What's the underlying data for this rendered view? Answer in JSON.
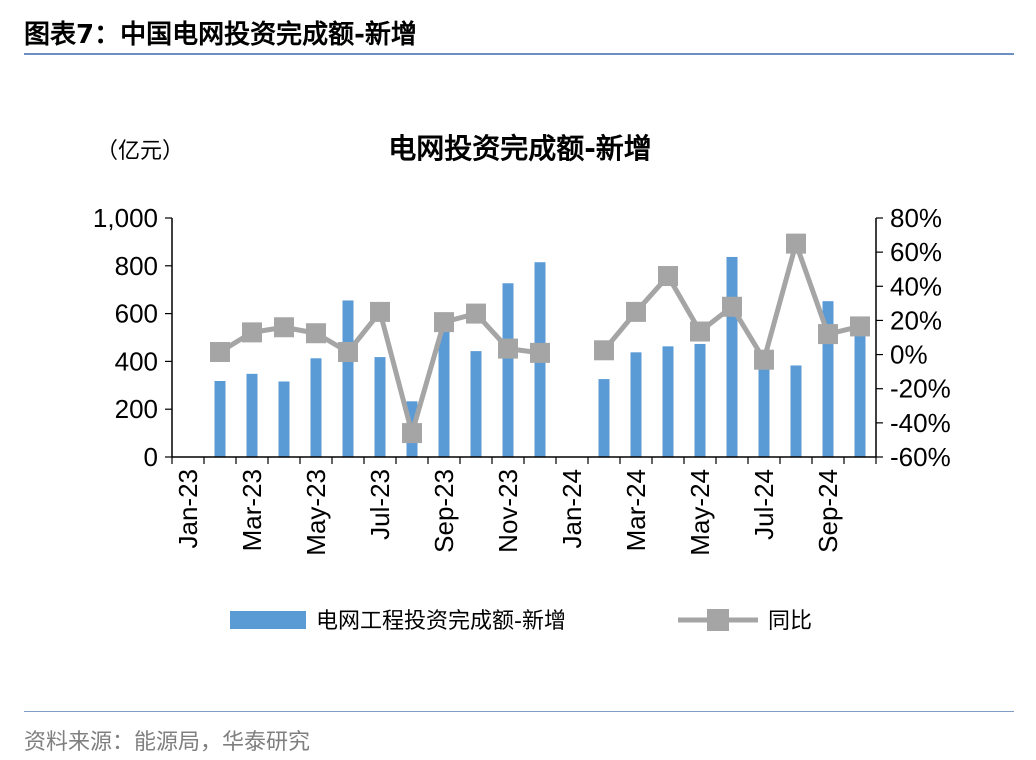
{
  "figure": {
    "label": "图表7：",
    "title": "中国电网投资完成额-新增"
  },
  "source": "资料来源：能源局，华泰研究",
  "colors": {
    "bar": "#5b9bd5",
    "line": "#a5a5a5",
    "rule": "#6b8fc2"
  },
  "chart_data": {
    "type": "bar",
    "title": "电网投资完成额-新增",
    "unit_label": "（亿元）",
    "x": [
      "Jan-23",
      "Feb-23",
      "Mar-23",
      "Apr-23",
      "May-23",
      "Jun-23",
      "Jul-23",
      "Aug-23",
      "Sep-23",
      "Oct-23",
      "Nov-23",
      "Dec-23",
      "Jan-24",
      "Feb-24",
      "Mar-24",
      "Apr-24",
      "May-24",
      "Jun-24",
      "Jul-24",
      "Aug-24",
      "Sep-24",
      "Oct-24"
    ],
    "x_tick_labels": [
      "Jan-23",
      "Mar-23",
      "May-23",
      "Jul-23",
      "Sep-23",
      "Nov-23",
      "Jan-24",
      "Mar-24",
      "May-24",
      "Jul-24",
      "Sep-24"
    ],
    "series": [
      {
        "name": "电网工程投资完成额-新增",
        "kind": "bar",
        "axis": "left",
        "values": [
          null,
          318,
          348,
          316,
          413,
          655,
          418,
          233,
          593,
          443,
          727,
          815,
          null,
          326,
          438,
          463,
          473,
          837,
          381,
          383,
          652,
          586
        ]
      },
      {
        "name": "同比",
        "kind": "line",
        "axis": "right",
        "marker": "square",
        "values": [
          null,
          1.5,
          13,
          16,
          12.5,
          1.5,
          25,
          -46,
          19,
          24,
          3.5,
          1,
          null,
          2.5,
          25,
          46,
          13.5,
          28,
          -3,
          65,
          12,
          16.5
        ]
      }
    ],
    "y_left": {
      "lim": [
        0,
        1000
      ],
      "ticks": [
        "0",
        "200",
        "400",
        "600",
        "800",
        "1,000"
      ],
      "tick_values": [
        0,
        200,
        400,
        600,
        800,
        1000
      ]
    },
    "y_right": {
      "lim": [
        -60,
        80
      ],
      "ticks": [
        "-60%",
        "-40%",
        "-20%",
        "0%",
        "20%",
        "40%",
        "60%",
        "80%"
      ],
      "tick_values": [
        -60,
        -40,
        -20,
        0,
        20,
        40,
        60,
        80
      ]
    },
    "legend": {
      "placement": "bottom"
    },
    "grid": false
  }
}
